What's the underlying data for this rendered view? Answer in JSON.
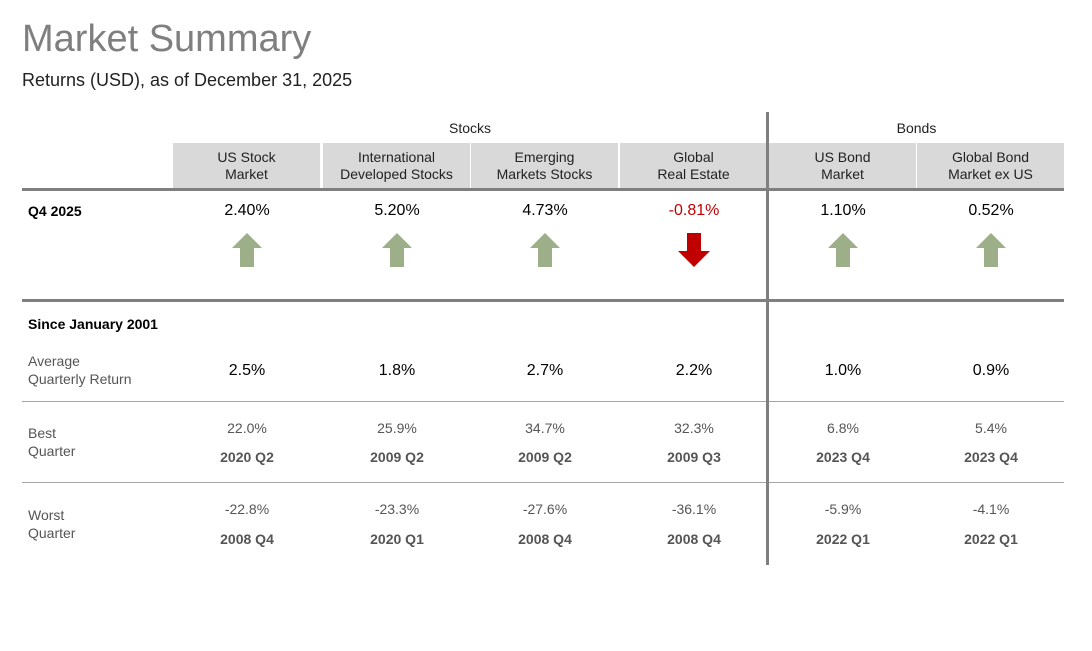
{
  "title": "Market Summary",
  "subtitle": "Returns (USD), as of December 31, 2025",
  "groups": {
    "stocks": "Stocks",
    "bonds": "Bonds"
  },
  "columns": [
    {
      "l1": "US Stock",
      "l2": "Market",
      "q4": "2.40%",
      "dir": "up",
      "avg": "2.5%",
      "best": "22.0%",
      "best_q": "2020 Q2",
      "worst": "-22.8%",
      "worst_q": "2008 Q4"
    },
    {
      "l1": "International",
      "l2": "Developed Stocks",
      "q4": "5.20%",
      "dir": "up",
      "avg": "1.8%",
      "best": "25.9%",
      "best_q": "2009 Q2",
      "worst": "-23.3%",
      "worst_q": "2020 Q1"
    },
    {
      "l1": "Emerging",
      "l2": "Markets Stocks",
      "q4": "4.73%",
      "dir": "up",
      "avg": "2.7%",
      "best": "34.7%",
      "best_q": "2009 Q2",
      "worst": "-27.6%",
      "worst_q": "2008 Q4"
    },
    {
      "l1": "Global",
      "l2": "Real Estate",
      "q4": "-0.81%",
      "dir": "down",
      "avg": "2.2%",
      "best": "32.3%",
      "best_q": "2009 Q3",
      "worst": "-36.1%",
      "worst_q": "2008 Q4"
    },
    {
      "l1": "US Bond",
      "l2": "Market",
      "q4": "1.10%",
      "dir": "up",
      "avg": "1.0%",
      "best": "6.8%",
      "best_q": "2023 Q4",
      "worst": "-5.9%",
      "worst_q": "2022 Q1"
    },
    {
      "l1": "Global Bond",
      "l2": "Market ex US",
      "q4": "0.52%",
      "dir": "up",
      "avg": "0.9%",
      "best": "5.4%",
      "best_q": "2023 Q4",
      "worst": "-4.1%",
      "worst_q": "2022 Q1"
    }
  ],
  "rows": {
    "q4": "Q4 2025",
    "since": "Since January 2001",
    "avg1": "Average",
    "avg2": "Quarterly Return",
    "best1": "Best",
    "best2": "Quarter",
    "worst1": "Worst",
    "worst2": "Quarter"
  },
  "colors": {
    "up": "#9caf88",
    "down": "#c00000",
    "negative_text": "#c00000"
  }
}
